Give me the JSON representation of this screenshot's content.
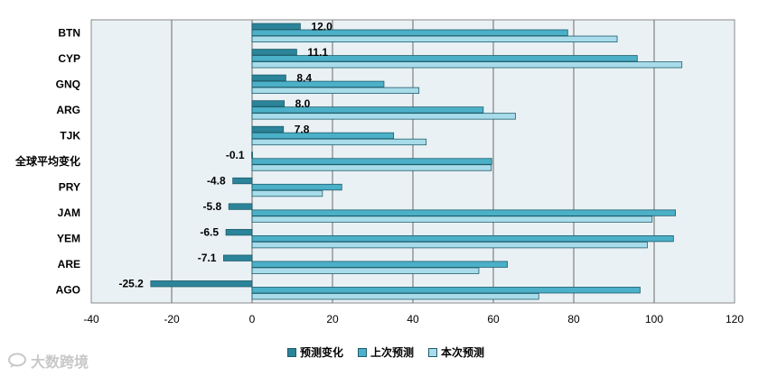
{
  "chart_data": {
    "type": "bar",
    "orientation": "horizontal",
    "categories": [
      "BTN",
      "CYP",
      "GNQ",
      "ARG",
      "TJK",
      "全球平均变化",
      "PRY",
      "JAM",
      "YEM",
      "ARE",
      "AGO"
    ],
    "series": [
      {
        "name": "预测变化",
        "color": "#2b8499",
        "values": [
          12.0,
          11.1,
          8.4,
          8.0,
          7.8,
          -0.1,
          -4.8,
          -5.8,
          -6.5,
          -7.1,
          -25.2
        ]
      },
      {
        "name": "上次预测",
        "color": "#4bb0c8",
        "values": [
          78.5,
          95.8,
          32.8,
          57.5,
          35.2,
          59.6,
          22.3,
          105.3,
          104.8,
          63.5,
          96.5
        ]
      },
      {
        "name": "本次预测",
        "color": "#a8dcea",
        "values": [
          90.8,
          106.9,
          41.5,
          65.5,
          43.3,
          59.5,
          17.5,
          99.5,
          98.3,
          56.4,
          71.3
        ]
      }
    ],
    "data_labels": [
      "12.0",
      "11.1",
      "8.4",
      "8.0",
      "7.8",
      "-0.1",
      "-4.8",
      "-5.8",
      "-6.5",
      "-7.1",
      "-25.2"
    ],
    "xticks": [
      "-40",
      "-20",
      "0",
      "20",
      "40",
      "60",
      "80",
      "100",
      "120"
    ],
    "xlim": [
      -40,
      120
    ],
    "grid": true,
    "legend_position": "bottom",
    "title": "",
    "xlabel": "",
    "ylabel": ""
  },
  "colors": {
    "plot_background": "#e9f1f5",
    "gridline": "#808080"
  },
  "watermark": {
    "text": "大数跨境",
    "icon": "chat-bubble-icon"
  }
}
